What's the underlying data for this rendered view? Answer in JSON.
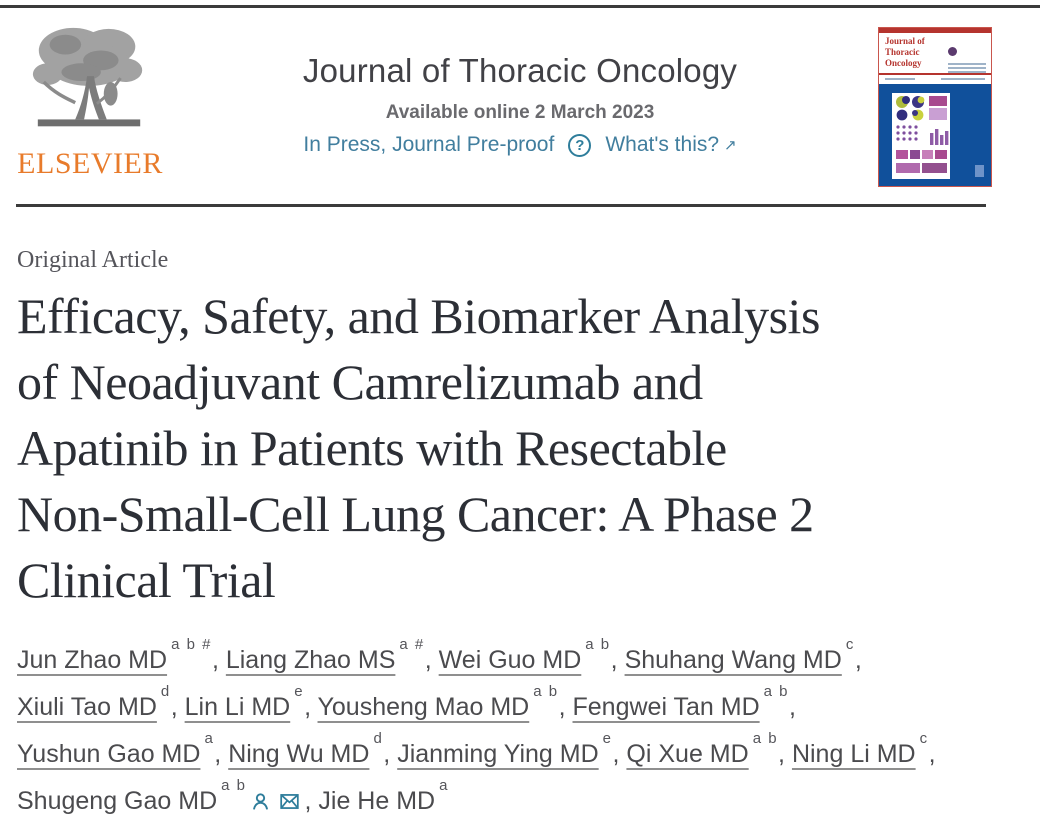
{
  "header": {
    "publisher_wordmark": "ELSEVIER",
    "journal_title": "Journal of Thoracic Oncology",
    "available_online": "Available online 2 March 2023",
    "in_press_label": "In Press, Journal Pre-proof",
    "help_icon_glyph": "?",
    "whats_this_label": "What's this?",
    "external_arrow_glyph": "↗"
  },
  "cover_thumbnail": {
    "title": "Journal of\nThoracic\nOncology"
  },
  "article": {
    "type_label": "Original Article",
    "title": "Efficacy, Safety, and Biomarker Analysis of Neoadjuvant Camrelizumab and Apatinib in Patients with Resectable Non-Small-Cell Lung Cancer: A Phase 2 Clinical Trial",
    "title_lines": [
      "Efficacy, Safety, and Biomarker Analysis",
      "of Neoadjuvant Camrelizumab and",
      "Apatinib in Patients with Resectable",
      "Non-Small-Cell Lung Cancer: A Phase 2",
      "Clinical Trial"
    ]
  },
  "authors": {
    "separator": ", ",
    "lines": [
      [
        {
          "name": "Jun Zhao MD",
          "sup": "a b #",
          "underlined": true
        },
        {
          "name": "Liang Zhao MS",
          "sup": "a #",
          "underlined": true
        },
        {
          "name": "Wei Guo MD",
          "sup": "a b",
          "underlined": true
        },
        {
          "name": "Shuhang Wang MD",
          "sup": "c",
          "underlined": true
        }
      ],
      [
        {
          "name": "Xiuli Tao MD",
          "sup": "d",
          "underlined": true
        },
        {
          "name": "Lin Li MD",
          "sup": "e",
          "underlined": true
        },
        {
          "name": "Yousheng Mao MD",
          "sup": "a b",
          "underlined": true
        },
        {
          "name": "Fengwei Tan MD",
          "sup": "a b",
          "underlined": true
        }
      ],
      [
        {
          "name": "Yushun Gao MD",
          "sup": "a",
          "underlined": true
        },
        {
          "name": "Ning Wu MD",
          "sup": "d",
          "underlined": true
        },
        {
          "name": "Jianming Ying MD",
          "sup": "e",
          "underlined": true
        },
        {
          "name": "Qi Xue MD",
          "sup": "a b",
          "underlined": true
        },
        {
          "name": "Ning Li MD",
          "sup": "c",
          "underlined": true
        }
      ],
      [
        {
          "name": "Shugeng Gao MD",
          "sup": "a b",
          "underlined": false,
          "icons": [
            "person",
            "envelope"
          ]
        },
        {
          "name": "Jie He MD",
          "sup": "a",
          "underlined": false
        }
      ]
    ]
  },
  "colors": {
    "link_teal": "#417e9e",
    "icon_teal": "#2e7d9b",
    "elsevier_orange": "#e87b2b",
    "cover_red": "#b5342e",
    "cover_blue": "#10509b",
    "rule_dark": "#3b3b3b",
    "title_text": "#2c2f36"
  }
}
